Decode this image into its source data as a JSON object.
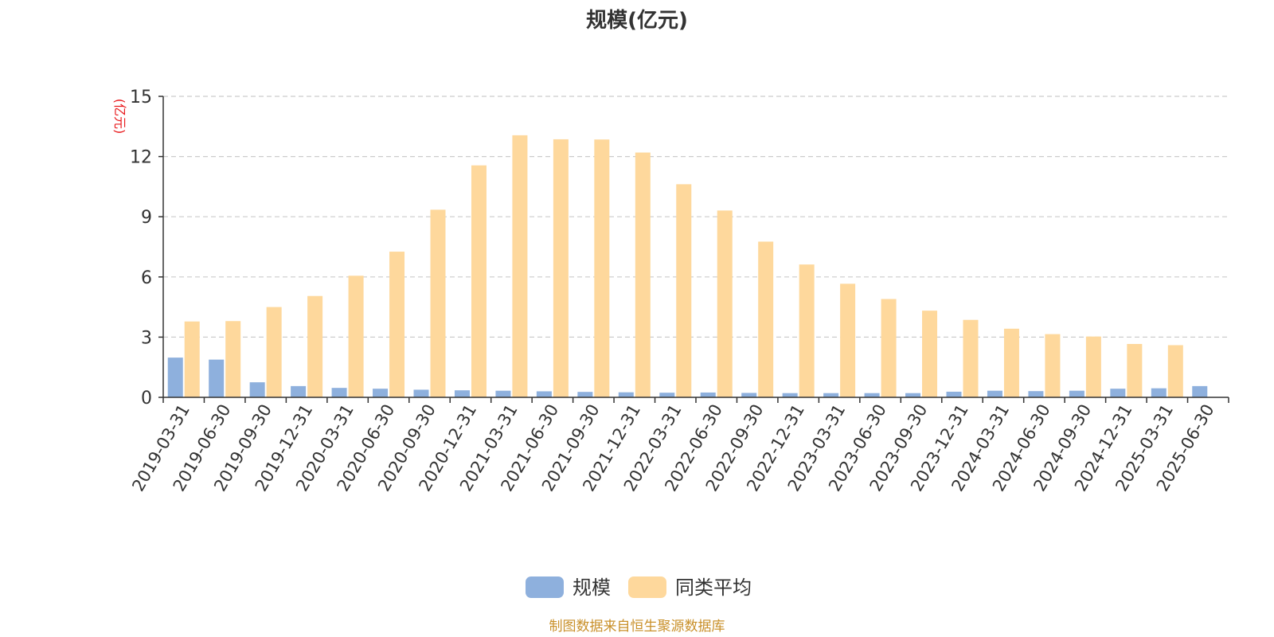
{
  "chart_data": {
    "type": "bar",
    "title": "规模(亿元)",
    "ylabel": "(亿元)",
    "xlabel": "",
    "ylim": [
      0,
      15
    ],
    "yticks": [
      0,
      3,
      6,
      9,
      12,
      15
    ],
    "grid": true,
    "legend_position": "bottom-center",
    "categories": [
      "2019-03-31",
      "2019-06-30",
      "2019-09-30",
      "2019-12-31",
      "2020-03-31",
      "2020-06-30",
      "2020-09-30",
      "2020-12-31",
      "2021-03-31",
      "2021-06-30",
      "2021-09-30",
      "2021-12-31",
      "2022-03-31",
      "2022-06-30",
      "2022-09-30",
      "2022-12-31",
      "2023-03-31",
      "2023-06-30",
      "2023-09-30",
      "2023-12-31",
      "2024-03-31",
      "2024-06-30",
      "2024-09-30",
      "2024-12-31",
      "2025-03-31",
      "2025-06-30"
    ],
    "series": [
      {
        "name": "规模",
        "color": "#8eb0dd",
        "values": [
          1.98,
          1.88,
          0.75,
          0.56,
          0.47,
          0.43,
          0.38,
          0.35,
          0.33,
          0.3,
          0.27,
          0.25,
          0.23,
          0.24,
          0.22,
          0.21,
          0.21,
          0.21,
          0.21,
          0.28,
          0.33,
          0.31,
          0.33,
          0.43,
          0.45,
          0.56
        ]
      },
      {
        "name": "同类平均",
        "color": "#fed89c",
        "values": [
          3.78,
          3.8,
          4.5,
          5.05,
          6.06,
          7.26,
          9.35,
          11.56,
          13.06,
          12.86,
          12.85,
          12.2,
          10.62,
          9.31,
          7.76,
          6.62,
          5.66,
          4.9,
          4.32,
          3.86,
          3.42,
          3.15,
          3.03,
          2.66,
          2.6,
          null
        ]
      }
    ]
  },
  "footer": {
    "source": "制图数据来自恒生聚源数据库"
  },
  "colors": {
    "source_text": "#c9902a",
    "ylabel_text": "#e8191c",
    "axis": "#333333",
    "grid": "#cccccc"
  }
}
